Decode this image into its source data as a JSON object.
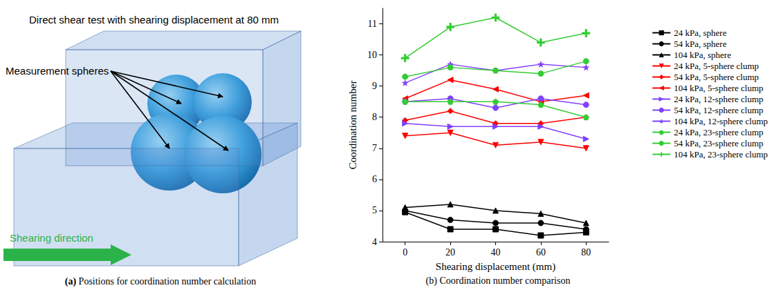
{
  "diagram": {
    "title": "Direct shear test with shearing displacement at 80 mm",
    "annotation": "Measurement spheres",
    "arrow_label": "Shearing direction",
    "caption": "(a) Positions for coordination number calculation"
  },
  "chart_data": {
    "type": "line",
    "title": "(b) Coordination number comparison",
    "x_label": "Shearing displacement (mm)",
    "y_label": "Coordination number",
    "x": [
      0,
      20,
      40,
      60,
      80
    ],
    "xlim": [
      -10,
      90
    ],
    "xticks": [
      0,
      20,
      40,
      60,
      80
    ],
    "ylim": [
      4,
      11.5
    ],
    "yticks": [
      4,
      5,
      6,
      7,
      8,
      9,
      10,
      11
    ],
    "grid": false,
    "legend": "right",
    "series": [
      {
        "name": "24 kPa, sphere",
        "color": "#000000",
        "marker": "square",
        "values": [
          4.95,
          4.4,
          4.4,
          4.2,
          4.3
        ]
      },
      {
        "name": "54 kPa, sphere",
        "color": "#000000",
        "marker": "circle",
        "values": [
          5.0,
          4.7,
          4.6,
          4.6,
          4.4
        ]
      },
      {
        "name": "104 kPa, sphere",
        "color": "#000000",
        "marker": "triangle",
        "values": [
          5.1,
          5.2,
          5.0,
          4.9,
          4.6
        ]
      },
      {
        "name": "24 kPa, 5-sphere clump",
        "color": "#ff0000",
        "marker": "triangle-down",
        "values": [
          7.4,
          7.5,
          7.1,
          7.2,
          7.0
        ]
      },
      {
        "name": "54 kPa, 5-sphere clump",
        "color": "#ff0000",
        "marker": "diamond",
        "values": [
          7.9,
          8.2,
          7.8,
          7.8,
          8.0
        ]
      },
      {
        "name": "104 kPa, 5-sphere clump",
        "color": "#ff0000",
        "marker": "triangle-left",
        "values": [
          8.6,
          9.2,
          8.9,
          8.5,
          8.7
        ]
      },
      {
        "name": "24 kPa, 12-sphere clump",
        "color": "#8040ff",
        "marker": "triangle-right",
        "values": [
          7.8,
          7.7,
          7.7,
          7.7,
          7.3
        ]
      },
      {
        "name": "54 kPa, 12-sphere clump",
        "color": "#8040ff",
        "marker": "circle",
        "values": [
          8.5,
          8.6,
          8.3,
          8.6,
          8.4
        ]
      },
      {
        "name": "104 kPa, 12-sphere clump",
        "color": "#8040ff",
        "marker": "star",
        "values": [
          9.1,
          9.7,
          9.5,
          9.7,
          9.6
        ]
      },
      {
        "name": "24 kPa, 23-sphere clump",
        "color": "#33cc33",
        "marker": "pentagon",
        "values": [
          8.5,
          8.5,
          8.5,
          8.4,
          8.0
        ]
      },
      {
        "name": "54 kPa, 23-sphere clump",
        "color": "#33cc33",
        "marker": "circle",
        "values": [
          9.3,
          9.6,
          9.5,
          9.4,
          9.8
        ]
      },
      {
        "name": "104 kPa, 23-sphere clump",
        "color": "#33cc33",
        "marker": "plus",
        "values": [
          9.9,
          10.9,
          11.2,
          10.4,
          10.7
        ]
      }
    ]
  }
}
